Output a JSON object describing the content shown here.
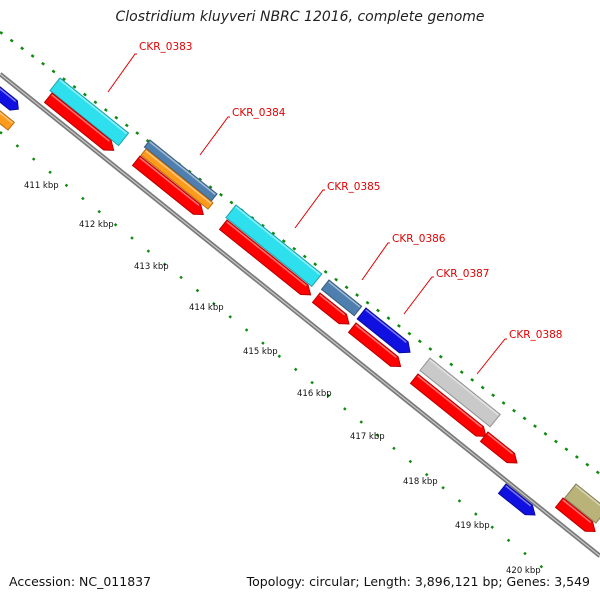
{
  "title": "Clostridium kluyveri NBRC 12016, complete genome",
  "footer": {
    "accession": "Accession: NC_011837",
    "summary": "Topology: circular; Length: 3,896,121 bp; Genes: 3,549"
  },
  "colors": {
    "backbone": "#8a8a8a",
    "tick_dots": "#0f8a0f",
    "label_red": "#e00000",
    "cds_forward": "#ff0000",
    "cyan": "#2ee0ee",
    "steel_blue": "#4f7fae",
    "orange": "#ff9a1a",
    "blue": "#1010e0",
    "light_gray": "#c9c9c9",
    "olive": "#b9b37a"
  },
  "scale_labels": [
    "411 kbp",
    "412 kbp",
    "413 kbp",
    "414 kbp",
    "415 kbp",
    "416 kbp",
    "417 kbp",
    "418 kbp",
    "419 kbp",
    "420 kbp"
  ],
  "genes": [
    {
      "label": "CKR_0383"
    },
    {
      "label": "CKR_0384"
    },
    {
      "label": "CKR_0385"
    },
    {
      "label": "CKR_0386"
    },
    {
      "label": "CKR_0387"
    },
    {
      "label": "CKR_0388"
    }
  ]
}
